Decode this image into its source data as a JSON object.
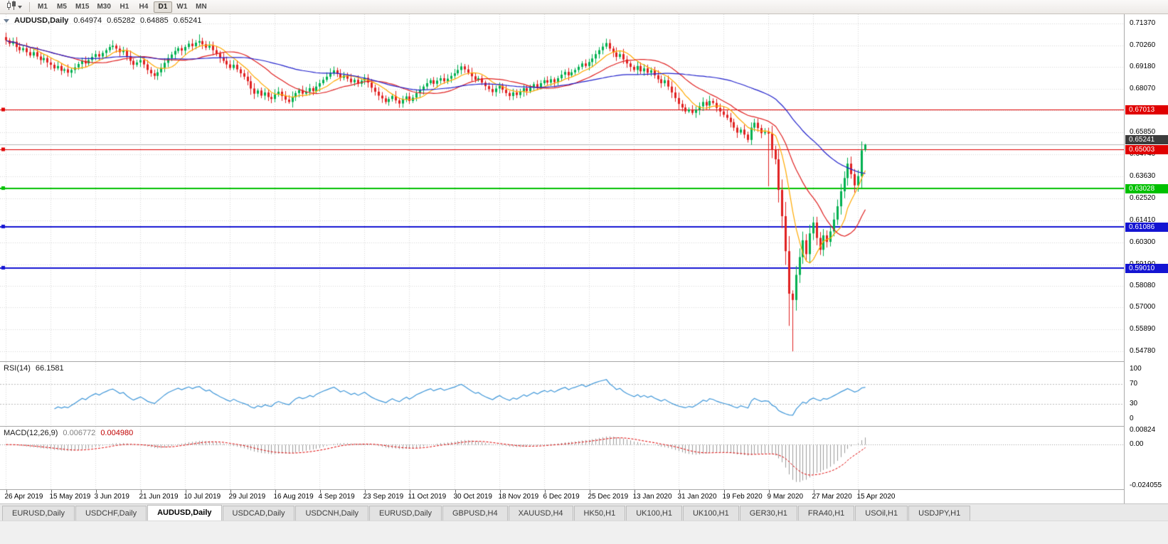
{
  "toolbar": {
    "timeframes": [
      {
        "label": "M1"
      },
      {
        "label": "M5"
      },
      {
        "label": "M15"
      },
      {
        "label": "M30"
      },
      {
        "label": "H1"
      },
      {
        "label": "H4"
      },
      {
        "label": "D1",
        "active": true
      },
      {
        "label": "W1"
      },
      {
        "label": "MN"
      }
    ]
  },
  "header": {
    "symbol": "AUDUSD,Daily",
    "open": "0.64974",
    "high": "0.65282",
    "low": "0.64885",
    "close": "0.65241"
  },
  "indicators": {
    "rsi": {
      "label": "RSI(14)",
      "value": "66.1581",
      "levels": [
        "100",
        "70",
        "30",
        "0"
      ],
      "line_color": "#3f97d9"
    },
    "macd": {
      "label": "MACD(12,26,9)",
      "main_value": "0.006772",
      "signal_value": "0.004980",
      "levels": [
        "0.00824",
        "0.00",
        "-0.024055"
      ],
      "hist_color": "#9c9c9c",
      "signal_color": "#e00000",
      "scale_max": 0.0105,
      "scale_min": -0.0262
    }
  },
  "price_axis": [
    "0.71370",
    "0.70260",
    "0.69180",
    "0.68070",
    "0.66990",
    "0.65850",
    "0.64740",
    "0.63630",
    "0.62520",
    "0.61410",
    "0.60300",
    "0.59190",
    "0.58080",
    "0.57000",
    "0.55890",
    "0.54780"
  ],
  "price_scale": {
    "max": 0.7184,
    "min": 0.5428
  },
  "hlines": [
    {
      "value": "0.67013",
      "color": "#e00000",
      "width": 1
    },
    {
      "value": "0.65003",
      "color": "#e00000",
      "width": 1
    },
    {
      "value": "0.63028",
      "color": "#00c000",
      "width": 2
    },
    {
      "value": "0.61086",
      "color": "#1414d2",
      "width": 2
    },
    {
      "value": "0.59010",
      "color": "#1414d2",
      "width": 2
    }
  ],
  "current_price": {
    "value": "0.65241",
    "line_color": "#b8b8b8",
    "badge_bg": "#3c3c3c"
  },
  "time_axis": [
    "26 Apr 2019",
    "15 May 2019",
    "3 Jun 2019",
    "21 Jun 2019",
    "10 Jul 2019",
    "29 Jul 2019",
    "16 Aug 2019",
    "4 Sep 2019",
    "23 Sep 2019",
    "11 Oct 2019",
    "30 Oct 2019",
    "18 Nov 2019",
    "6 Dec 2019",
    "25 Dec 2019",
    "13 Jan 2020",
    "31 Jan 2020",
    "19 Feb 2020",
    "9 Mar 2020",
    "27 Mar 2020",
    "15 Apr 2020"
  ],
  "chart_data": {
    "type": "candlestick",
    "title": "AUDUSD,Daily",
    "x_tick_step": 13,
    "first_open": 0.7068,
    "current_bar": {
      "open": 0.64974,
      "high": 0.65282,
      "low": 0.64885,
      "close": 0.65241
    },
    "closes": [
      0.7052,
      0.7035,
      0.7045,
      0.7018,
      0.7002,
      0.7012,
      0.6992,
      0.6975,
      0.6992,
      0.697,
      0.6952,
      0.6962,
      0.694,
      0.6928,
      0.691,
      0.6922,
      0.6898,
      0.6905,
      0.6888,
      0.6902,
      0.6915,
      0.6932,
      0.6948,
      0.6935,
      0.6952,
      0.6968,
      0.6982,
      0.697,
      0.6988,
      0.7002,
      0.7018,
      0.7025,
      0.701,
      0.6992,
      0.7,
      0.6972,
      0.6948,
      0.6928,
      0.694,
      0.6952,
      0.693,
      0.6902,
      0.6885,
      0.6872,
      0.689,
      0.6912,
      0.6938,
      0.6962,
      0.698,
      0.6998,
      0.7012,
      0.7,
      0.7018,
      0.7035,
      0.7022,
      0.704,
      0.7048,
      0.7032,
      0.7015,
      0.7025,
      0.7002,
      0.6985,
      0.6965,
      0.6948,
      0.693,
      0.6912,
      0.6928,
      0.6905,
      0.6885,
      0.6868,
      0.6845,
      0.6808,
      0.6782,
      0.6798,
      0.6772,
      0.6788,
      0.6765,
      0.6755,
      0.6778,
      0.6792,
      0.677,
      0.6752,
      0.674,
      0.6765,
      0.6785,
      0.68,
      0.6782,
      0.6792,
      0.681,
      0.6795,
      0.6818,
      0.6835,
      0.6852,
      0.6868,
      0.6885,
      0.69,
      0.6882,
      0.6862,
      0.6875,
      0.6858,
      0.684,
      0.6852,
      0.6832,
      0.6848,
      0.6862,
      0.6838,
      0.6812,
      0.6792,
      0.6772,
      0.6758,
      0.674,
      0.6755,
      0.677,
      0.6748,
      0.6732,
      0.6752,
      0.6768,
      0.6745,
      0.6762,
      0.6785,
      0.68,
      0.6818,
      0.6835,
      0.685,
      0.6832,
      0.6848,
      0.686,
      0.6845,
      0.6858,
      0.6872,
      0.6885,
      0.6902,
      0.692,
      0.6905,
      0.6888,
      0.687,
      0.6852,
      0.686,
      0.6838,
      0.682,
      0.6805,
      0.679,
      0.6808,
      0.6822,
      0.6802,
      0.6785,
      0.677,
      0.6788,
      0.6775,
      0.6792,
      0.681,
      0.6795,
      0.6812,
      0.683,
      0.6815,
      0.6835,
      0.685,
      0.6838,
      0.6855,
      0.684,
      0.686,
      0.6878,
      0.6892,
      0.6875,
      0.689,
      0.6902,
      0.6918,
      0.6935,
      0.6922,
      0.6942,
      0.696,
      0.6982,
      0.7002,
      0.702,
      0.7038,
      0.701,
      0.699,
      0.6968,
      0.6982,
      0.6955,
      0.6935,
      0.6918,
      0.6902,
      0.6922,
      0.6895,
      0.691,
      0.6888,
      0.69,
      0.6875,
      0.6855,
      0.6835,
      0.685,
      0.6818,
      0.6788,
      0.676,
      0.673,
      0.6712,
      0.6692,
      0.6702,
      0.6685,
      0.67,
      0.6718,
      0.674,
      0.6722,
      0.6745,
      0.6735,
      0.671,
      0.6692,
      0.6675,
      0.666,
      0.6638,
      0.661,
      0.6585,
      0.66,
      0.6575,
      0.6548,
      0.661,
      0.6635,
      0.6608,
      0.6582,
      0.6588,
      0.658,
      0.6498,
      0.645,
      0.6295,
      0.6162,
      0.5985,
      0.577,
      0.5738,
      0.5865,
      0.5955,
      0.604,
      0.597,
      0.6075,
      0.613,
      0.6052,
      0.5992,
      0.6065,
      0.6032,
      0.6085,
      0.6145,
      0.6212,
      0.6288,
      0.6355,
      0.6428,
      0.6375,
      0.6318,
      0.6365,
      0.6495,
      0.65241
    ],
    "wick_overrides": {
      "31": {
        "high": 0.7052
      },
      "56": {
        "high": 0.7082
      },
      "221": {
        "low": 0.6313
      },
      "227": {
        "low": 0.5607
      },
      "228": {
        "low": 0.5478
      },
      "249": {
        "high": 0.65282,
        "low": 0.64885
      }
    },
    "moving_averages": [
      {
        "period": 8,
        "color": "#ffaa00"
      },
      {
        "period": 20,
        "color": "#e02020"
      },
      {
        "period": 50,
        "color": "#2222cc"
      }
    ]
  },
  "tabs": [
    {
      "label": "EURUSD,Daily"
    },
    {
      "label": "USDCHF,Daily"
    },
    {
      "label": "AUDUSD,Daily",
      "active": true
    },
    {
      "label": "USDCAD,Daily"
    },
    {
      "label": "USDCNH,Daily"
    },
    {
      "label": "EURUSD,Daily"
    },
    {
      "label": "GBPUSD,H4"
    },
    {
      "label": "XAUUSD,H4"
    },
    {
      "label": "HK50,H1"
    },
    {
      "label": "UK100,H1"
    },
    {
      "label": "UK100,H1"
    },
    {
      "label": "GER30,H1"
    },
    {
      "label": "FRA40,H1"
    },
    {
      "label": "USOil,H1"
    },
    {
      "label": "USDJPY,H1"
    }
  ],
  "colors": {
    "bull": "#00b050",
    "bear": "#e02020",
    "grid": "#d9d9d9",
    "background": "#ffffff"
  }
}
